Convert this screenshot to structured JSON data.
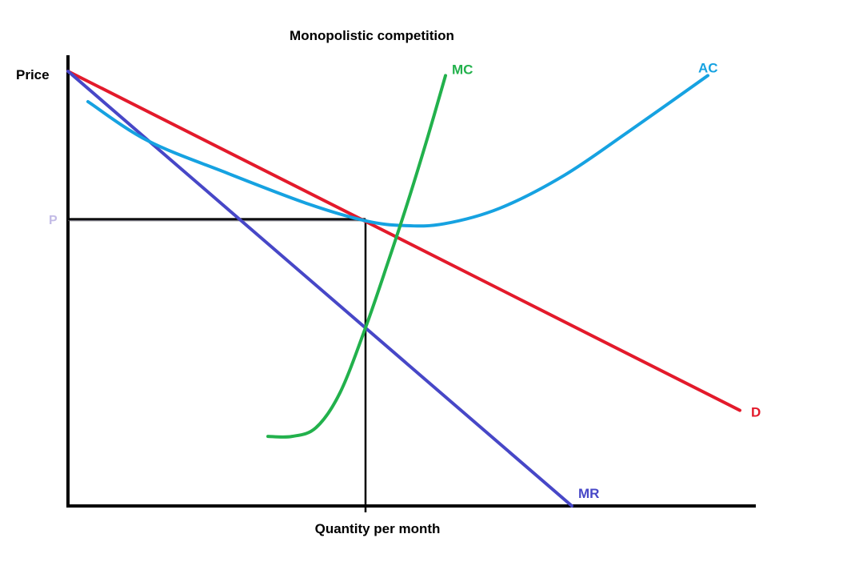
{
  "chart_data": {
    "type": "line",
    "title": "Monopolistic competition",
    "xlabel": "Quantity per month",
    "ylabel": "Price",
    "price_label": "P",
    "grid": false,
    "legend": "none",
    "colors": {
      "demand": "#e31a2b",
      "marginal_revenue": "#4747c7",
      "average_cost": "#16a2e1",
      "marginal_cost": "#22b14c",
      "profit_area": "#c3bbe6",
      "price_label": "#c3bbe6",
      "axes": "#000000"
    },
    "series": [
      {
        "name": "D",
        "color": "#e31a2b",
        "x": [
          0,
          840
        ],
        "y": [
          100,
          22
        ]
      },
      {
        "name": "MR",
        "color": "#4747c7",
        "x": [
          0,
          630
        ],
        "y": [
          100,
          0
        ]
      },
      {
        "name": "AC",
        "color": "#16a2e1",
        "x": [
          25,
          100,
          200,
          300,
          372,
          420,
          470,
          540,
          620,
          700,
          800
        ],
        "y": [
          93,
          84,
          76.5,
          69.5,
          65.6,
          64.5,
          64.9,
          68.5,
          76,
          86,
          99
        ]
      },
      {
        "name": "MC",
        "color": "#22b14c",
        "x": [
          250,
          280,
          310,
          340,
          372,
          400,
          425,
          450,
          472
        ],
        "y": [
          16,
          16,
          18,
          26,
          41,
          56,
          70,
          85,
          99
        ]
      }
    ],
    "equilibrium": {
      "quantity": 372,
      "price": 66,
      "average_cost": 65.6
    }
  }
}
